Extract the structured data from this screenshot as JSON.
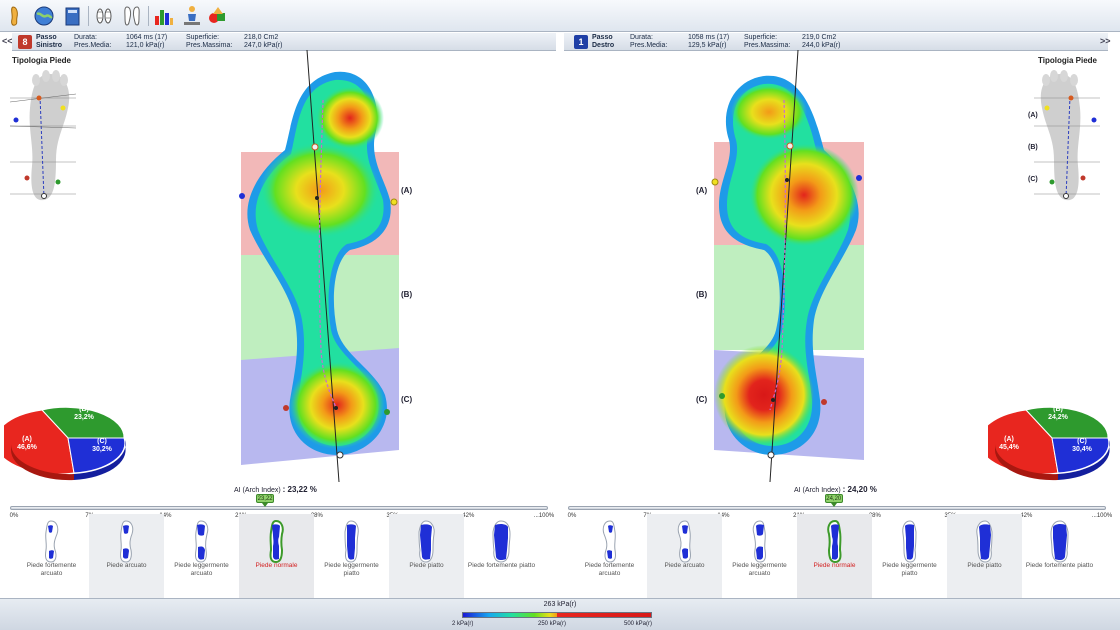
{
  "left": {
    "badge": "8",
    "badge_color": "#c0392b",
    "step_line1": "Passo",
    "step_line2": "Sinistro",
    "durata_label": "Durata:",
    "durata_value": "1064 ms (17)",
    "superficie_label": "Superficie:",
    "superficie_value": "218,0 Cm2",
    "pres_media_label": "Pres.Media:",
    "pres_media_value": "121,0 kPa(r)",
    "pres_massima_label": "Pres.Massima:",
    "pres_massima_value": "247,0 kPa(r)",
    "arch_index_label": "AI (Arch Index)",
    "arch_index_value": ": 23,22 %",
    "marker_value": "23,22",
    "marker_fraction": 0.2322,
    "pie": {
      "A": "46,6%",
      "B": "23,2%",
      "C": "30,2%"
    }
  },
  "right": {
    "badge": "1",
    "badge_color": "#1f3fa6",
    "step_line1": "Passo",
    "step_line2": "Destro",
    "durata_label": "Durata:",
    "durata_value": "1058 ms (17)",
    "superficie_label": "Superficie:",
    "superficie_value": "219,0 Cm2",
    "pres_media_label": "Pres.Media:",
    "pres_media_value": "129,5 kPa(r)",
    "pres_massima_label": "Pres.Massima:",
    "pres_massima_value": "244,0 kPa(r)",
    "arch_index_label": "AI (Arch Index)",
    "arch_index_value": ": 24,20 %",
    "marker_value": "24,20",
    "marker_fraction": 0.242,
    "pie": {
      "A": "45,4%",
      "B": "24,2%",
      "C": "30,4%"
    }
  },
  "foot_type_title": "Tipologia Piede",
  "zones": {
    "A": "(A)",
    "B": "(B)",
    "C": "(C)"
  },
  "scale_ticks": [
    "0%",
    "7%",
    "14%",
    "21%",
    "28%",
    "35%",
    "42%",
    "...100%"
  ],
  "categories": [
    "Piede fortemente arcuato",
    "Piede arcuato",
    "Piede leggermente arcuato",
    "Piede normale",
    "Piede leggermente piatto",
    "Piede piatto",
    "Piede fortemente piatto"
  ],
  "selected_category_index": 3,
  "nav": {
    "prev": "<<",
    "next": ">>"
  },
  "legend": {
    "max": "263 kPa(r)",
    "min_label": "2 kPa(r)",
    "mid_label": "250 kPa(r)",
    "high_label": "500 kPa(r)"
  },
  "colors": {
    "zone_a": "#f2b8b8",
    "zone_b": "#bfeebf",
    "zone_c": "#b8b8ef",
    "pie_a": "#e8261f",
    "pie_b": "#2e9a2e",
    "pie_c": "#1f2fd6",
    "selected_label": "#d21f1f"
  },
  "toolbar_icons": [
    "foot-icon",
    "globe-icon",
    "book-icon",
    "footprints-icon",
    "feet-outline-icon",
    "bar-chart-icon",
    "person-scale-icon",
    "shapes-icon"
  ]
}
